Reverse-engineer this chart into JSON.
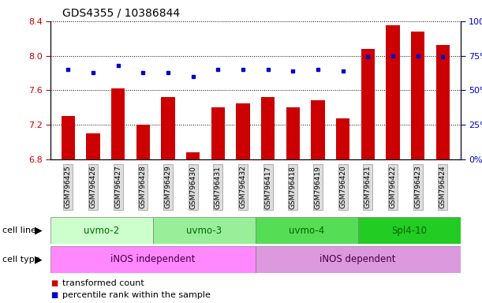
{
  "title": "GDS4355 / 10386844",
  "samples": [
    "GSM796425",
    "GSM796426",
    "GSM796427",
    "GSM796428",
    "GSM796429",
    "GSM796430",
    "GSM796431",
    "GSM796432",
    "GSM796417",
    "GSM796418",
    "GSM796419",
    "GSM796420",
    "GSM796421",
    "GSM796422",
    "GSM796423",
    "GSM796424"
  ],
  "transformed_count": [
    7.3,
    7.1,
    7.62,
    7.2,
    7.52,
    6.88,
    7.4,
    7.45,
    7.52,
    7.4,
    7.48,
    7.27,
    8.08,
    8.35,
    8.28,
    8.12
  ],
  "percentile_rank": [
    65,
    63,
    68,
    63,
    63,
    60,
    65,
    65,
    65,
    64,
    65,
    64,
    74,
    75,
    75,
    74
  ],
  "ylim_left": [
    6.8,
    8.4
  ],
  "ylim_right": [
    0,
    100
  ],
  "yticks_left": [
    6.8,
    7.2,
    7.6,
    8.0,
    8.4
  ],
  "yticks_right": [
    0,
    25,
    50,
    75,
    100
  ],
  "ytick_labels_right": [
    "0%",
    "25%",
    "50%",
    "75%",
    "100%"
  ],
  "bar_color": "#cc0000",
  "dot_color": "#0000cc",
  "cell_line_groups": [
    {
      "label": "uvmo-2",
      "start": 0,
      "end": 3,
      "color": "#ccffcc"
    },
    {
      "label": "uvmo-3",
      "start": 4,
      "end": 7,
      "color": "#99ee99"
    },
    {
      "label": "uvmo-4",
      "start": 8,
      "end": 11,
      "color": "#55dd55"
    },
    {
      "label": "Spl4-10",
      "start": 12,
      "end": 15,
      "color": "#22cc22"
    }
  ],
  "cell_type_groups": [
    {
      "label": "iNOS independent",
      "start": 0,
      "end": 7,
      "color": "#ff88ff"
    },
    {
      "label": "iNOS dependent",
      "start": 8,
      "end": 15,
      "color": "#dd99dd"
    }
  ],
  "legend_items": [
    {
      "label": "transformed count",
      "color": "#cc0000"
    },
    {
      "label": "percentile rank within the sample",
      "color": "#0000cc"
    }
  ],
  "grid_color": "black",
  "grid_linestyle": ":",
  "background_color": "white",
  "tick_label_color_left": "#cc0000",
  "tick_label_color_right": "#0000cc",
  "xtick_bg_color": "#dddddd",
  "cell_line_text_color": "#006600",
  "cell_type_text_color": "#440044"
}
